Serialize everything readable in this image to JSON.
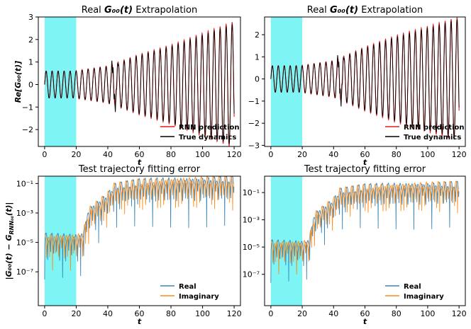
{
  "colors": {
    "shade": "#7ff4f4",
    "rnn_prediction": "#e31a1c",
    "true_dynamics": "#000000",
    "real": "#3a86b8",
    "imaginary": "#ff8c1a"
  },
  "chart_data": [
    {
      "id": "top-left",
      "type": "line",
      "title_prefix": "Real ",
      "title_math": "G₀₀(t)",
      "title_suffix": " Extrapolation",
      "xlabel": "t",
      "ylabel": "Re[G₀₀(t)]",
      "xlim": [
        -4,
        124
      ],
      "ylim": [
        -2.75,
        3.0
      ],
      "xticks": [
        0,
        20,
        40,
        60,
        80,
        100,
        120
      ],
      "yticks": [
        -2,
        -1,
        0,
        1,
        2,
        3
      ],
      "shaded_region": [
        0,
        20
      ],
      "legend_position": "lower-right",
      "series": [
        {
          "name": "RNN prediction",
          "color_key": "rnn_prediction"
        },
        {
          "name": "True dynamics",
          "color_key": "true_dynamics"
        }
      ],
      "envelope": {
        "t": [
          0,
          20,
          40,
          60,
          80,
          100,
          120
        ],
        "amplitude": [
          0.6,
          0.6,
          0.8,
          1.3,
          1.7,
          2.2,
          2.7
        ]
      },
      "period": 3.8
    },
    {
      "id": "top-right",
      "type": "line",
      "title_prefix": "Real ",
      "title_math": "G₀₀(t)",
      "title_suffix": " Extrapolation",
      "xlabel": "t",
      "ylabel": "",
      "xlim": [
        -4,
        124
      ],
      "ylim": [
        -3.05,
        2.8
      ],
      "xticks": [
        0,
        20,
        40,
        60,
        80,
        100,
        120
      ],
      "yticks": [
        -3,
        -2,
        -1,
        0,
        1,
        2
      ],
      "shaded_region": [
        0,
        20
      ],
      "legend_position": "lower-right",
      "series": [
        {
          "name": "RNN prediction",
          "color_key": "rnn_prediction"
        },
        {
          "name": "True dynamics",
          "color_key": "true_dynamics"
        }
      ],
      "envelope": {
        "t": [
          0,
          20,
          40,
          60,
          80,
          100,
          120
        ],
        "amplitude": [
          0.6,
          0.6,
          0.8,
          1.4,
          1.9,
          2.3,
          2.7
        ]
      },
      "period": 3.8
    },
    {
      "id": "bottom-left",
      "type": "line",
      "title": "Test trajectory fitting error",
      "xlabel": "t",
      "ylabel_main": "|G₀₀(t) − G",
      "ylabel_sub": "RNN₀₀",
      "ylabel_end": "(t)|",
      "yscale": "log",
      "xlim": [
        -4,
        124
      ],
      "ylim_log10": [
        -9.3,
        -0.5
      ],
      "xticks": [
        0,
        20,
        40,
        60,
        80,
        100,
        120
      ],
      "yticks_log10": [
        -7,
        -5,
        -3,
        -1
      ],
      "ytick_labels": [
        "10⁻⁷",
        "10⁻⁵",
        "10⁻³",
        "10⁻¹"
      ],
      "shaded_region": [
        0,
        20
      ],
      "legend_position": "lower-right",
      "series": [
        {
          "name": "Real",
          "color_key": "real"
        },
        {
          "name": "Imaginary",
          "color_key": "imaginary"
        }
      ],
      "baseline_log10": {
        "t": [
          0,
          20,
          24,
          28,
          40,
          44,
          60,
          80,
          100,
          120
        ],
        "value": [
          -4.6,
          -4.6,
          -4.5,
          -2.8,
          -1.8,
          -1.2,
          -0.9,
          -0.8,
          -0.75,
          -0.7
        ]
      },
      "dip_depth_log10": 3.0
    },
    {
      "id": "bottom-right",
      "type": "line",
      "title": "Test trajectory fitting error",
      "xlabel": "t",
      "yscale": "log",
      "xlim": [
        -4,
        124
      ],
      "ylim_log10": [
        -9.3,
        0.2
      ],
      "xticks": [
        0,
        20,
        40,
        60,
        80,
        100,
        120
      ],
      "yticks_log10": [
        -7,
        -5,
        -3,
        -1
      ],
      "ytick_labels": [
        "10⁻⁷",
        "10⁻⁵",
        "10⁻³",
        "10⁻¹"
      ],
      "shaded_region": [
        0,
        20
      ],
      "legend_position": "lower-right",
      "series": [
        {
          "name": "Real",
          "color_key": "real"
        },
        {
          "name": "Imaginary",
          "color_key": "imaginary"
        }
      ],
      "baseline_log10": {
        "t": [
          0,
          20,
          24,
          28,
          40,
          44,
          60,
          80,
          100,
          120
        ],
        "value": [
          -4.7,
          -4.7,
          -4.6,
          -2.6,
          -1.6,
          -0.9,
          -0.6,
          -0.5,
          -0.45,
          -0.4
        ]
      },
      "dip_depth_log10": 3.0
    }
  ]
}
